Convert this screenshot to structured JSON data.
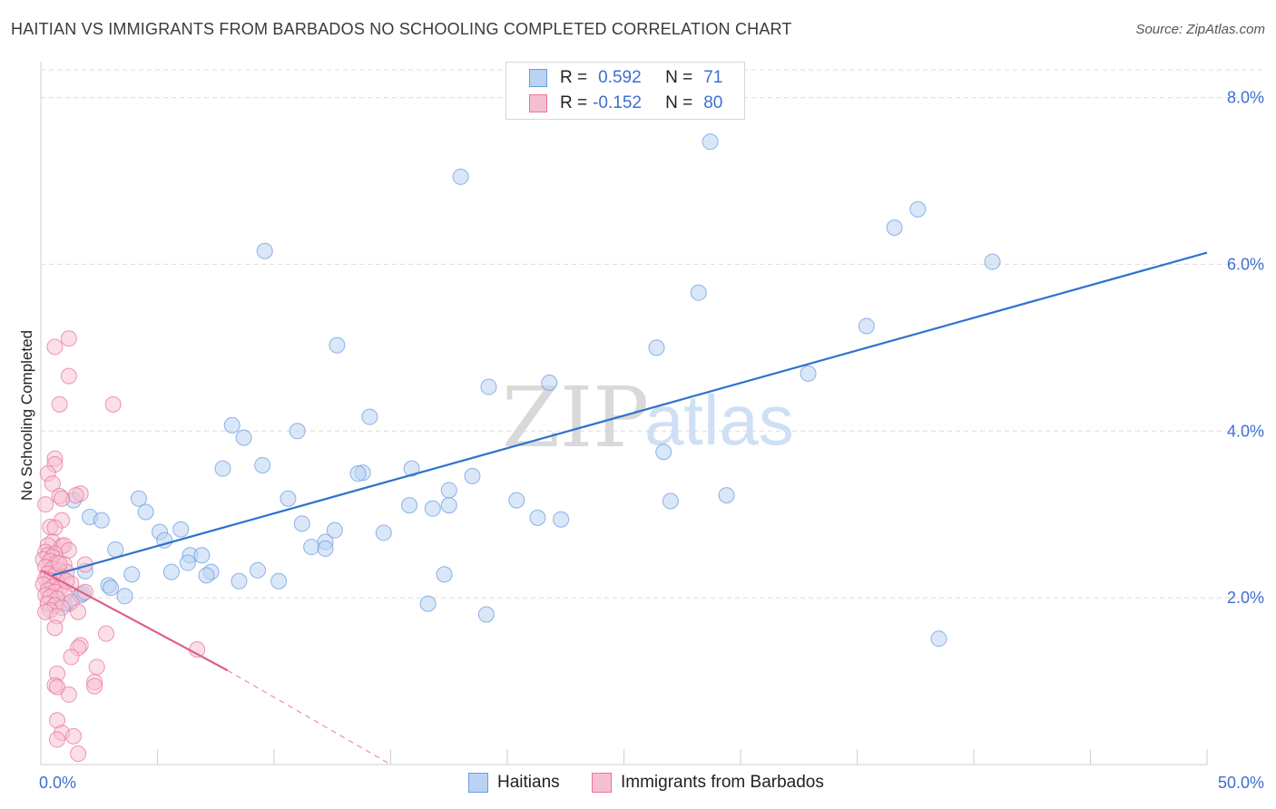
{
  "title": "HAITIAN VS IMMIGRANTS FROM BARBADOS NO SCHOOLING COMPLETED CORRELATION CHART",
  "source": "Source: ZipAtlas.com",
  "watermark": {
    "zip": "ZIP",
    "atlas": "atlas"
  },
  "legend": {
    "rows": [
      {
        "r_label": "R =",
        "r_value": "0.592",
        "n_label": "N =",
        "n_value": "71"
      },
      {
        "r_label": "R =",
        "r_value": "-0.152",
        "n_label": "N =",
        "n_value": "80"
      }
    ]
  },
  "colors": {
    "haitians": "#6d9be0",
    "haitians_fill": "#bad3f3",
    "barbados": "#e8769b",
    "barbados_fill": "#f6bfd0",
    "trend_blue": "#2f72cc",
    "trend_pink": "#e0608c",
    "tick_text": "#3d6fd0"
  },
  "chart_data": {
    "type": "scatter",
    "title": "HAITIAN VS IMMIGRANTS FROM BARBADOS NO SCHOOLING COMPLETED CORRELATION CHART",
    "xlabel": "",
    "ylabel": "No Schooling Completed",
    "xlim": [
      0,
      50
    ],
    "ylim": [
      0,
      8.3
    ],
    "x_tick_labels": [
      "0.0%",
      "50.0%"
    ],
    "y_ticks": [
      2,
      4,
      6,
      8
    ],
    "y_tick_labels": [
      "2.0%",
      "4.0%",
      "6.0%",
      "8.0%"
    ],
    "grid": true,
    "legend_position": "bottom",
    "series": [
      {
        "name": "Haitians",
        "r": 0.592,
        "n": 71,
        "trend": {
          "x0": 0.5,
          "y0": 2.27,
          "x1": 50.0,
          "y1": 6.14
        },
        "points": [
          [
            28.7,
            7.47
          ],
          [
            18.0,
            7.05
          ],
          [
            37.6,
            6.66
          ],
          [
            36.6,
            6.44
          ],
          [
            9.6,
            6.16
          ],
          [
            40.8,
            6.03
          ],
          [
            28.2,
            5.66
          ],
          [
            35.4,
            5.26
          ],
          [
            12.7,
            5.03
          ],
          [
            26.4,
            5.0
          ],
          [
            32.9,
            4.69
          ],
          [
            21.8,
            4.58
          ],
          [
            19.2,
            4.53
          ],
          [
            14.1,
            4.17
          ],
          [
            8.2,
            4.07
          ],
          [
            11.0,
            4.0
          ],
          [
            8.7,
            3.92
          ],
          [
            26.7,
            3.75
          ],
          [
            9.5,
            3.59
          ],
          [
            15.9,
            3.55
          ],
          [
            7.8,
            3.55
          ],
          [
            13.8,
            3.5
          ],
          [
            18.5,
            3.46
          ],
          [
            13.6,
            3.49
          ],
          [
            17.5,
            3.29
          ],
          [
            29.4,
            3.23
          ],
          [
            10.6,
            3.19
          ],
          [
            4.2,
            3.19
          ],
          [
            1.4,
            3.17
          ],
          [
            20.4,
            3.17
          ],
          [
            27.0,
            3.16
          ],
          [
            17.5,
            3.11
          ],
          [
            15.8,
            3.11
          ],
          [
            16.8,
            3.07
          ],
          [
            4.5,
            3.03
          ],
          [
            2.1,
            2.97
          ],
          [
            2.6,
            2.93
          ],
          [
            21.3,
            2.96
          ],
          [
            22.3,
            2.94
          ],
          [
            11.2,
            2.89
          ],
          [
            6.0,
            2.82
          ],
          [
            5.1,
            2.79
          ],
          [
            12.6,
            2.81
          ],
          [
            14.7,
            2.78
          ],
          [
            5.3,
            2.69
          ],
          [
            12.2,
            2.67
          ],
          [
            11.6,
            2.61
          ],
          [
            12.2,
            2.59
          ],
          [
            3.2,
            2.58
          ],
          [
            6.4,
            2.51
          ],
          [
            6.9,
            2.51
          ],
          [
            6.3,
            2.42
          ],
          [
            1.9,
            2.32
          ],
          [
            9.3,
            2.33
          ],
          [
            5.6,
            2.31
          ],
          [
            7.3,
            2.31
          ],
          [
            3.9,
            2.28
          ],
          [
            7.1,
            2.27
          ],
          [
            17.3,
            2.28
          ],
          [
            8.5,
            2.2
          ],
          [
            10.2,
            2.2
          ],
          [
            2.9,
            2.15
          ],
          [
            1.7,
            2.03
          ],
          [
            3.6,
            2.02
          ],
          [
            1.0,
            1.93
          ],
          [
            16.6,
            1.93
          ],
          [
            19.1,
            1.8
          ],
          [
            38.5,
            1.51
          ],
          [
            1.2,
            1.93
          ],
          [
            1.8,
            2.05
          ],
          [
            3.0,
            2.12
          ]
        ]
      },
      {
        "name": "Immigrants from Barbados",
        "r": -0.152,
        "n": 80,
        "trend": {
          "x0": 0.0,
          "y0": 2.33,
          "x1": 8.0,
          "y1": 1.13
        },
        "trend_extension": {
          "x0": 8.0,
          "y0": 1.13,
          "x1": 15.0,
          "y1": 0.0
        },
        "points": [
          [
            1.2,
            5.11
          ],
          [
            0.6,
            5.01
          ],
          [
            1.2,
            4.66
          ],
          [
            0.8,
            4.32
          ],
          [
            3.1,
            4.32
          ],
          [
            0.6,
            3.67
          ],
          [
            0.6,
            3.6
          ],
          [
            0.3,
            3.49
          ],
          [
            0.5,
            3.37
          ],
          [
            1.7,
            3.25
          ],
          [
            1.5,
            3.23
          ],
          [
            0.8,
            3.22
          ],
          [
            0.9,
            3.19
          ],
          [
            0.2,
            3.12
          ],
          [
            0.9,
            2.93
          ],
          [
            0.4,
            2.85
          ],
          [
            0.6,
            2.84
          ],
          [
            0.5,
            2.67
          ],
          [
            0.3,
            2.63
          ],
          [
            0.9,
            2.62
          ],
          [
            1.0,
            2.63
          ],
          [
            1.2,
            2.57
          ],
          [
            0.2,
            2.55
          ],
          [
            0.6,
            2.53
          ],
          [
            0.3,
            2.51
          ],
          [
            0.5,
            2.49
          ],
          [
            0.1,
            2.46
          ],
          [
            0.4,
            2.44
          ],
          [
            0.7,
            2.42
          ],
          [
            1.0,
            2.4
          ],
          [
            1.9,
            2.4
          ],
          [
            0.2,
            2.37
          ],
          [
            0.5,
            2.35
          ],
          [
            0.8,
            2.33
          ],
          [
            1.1,
            2.31
          ],
          [
            0.3,
            2.29
          ],
          [
            0.6,
            2.27
          ],
          [
            0.9,
            2.25
          ],
          [
            0.2,
            2.23
          ],
          [
            0.4,
            2.21
          ],
          [
            0.7,
            2.19
          ],
          [
            1.3,
            2.17
          ],
          [
            0.1,
            2.16
          ],
          [
            0.5,
            2.13
          ],
          [
            0.8,
            2.11
          ],
          [
            0.3,
            2.09
          ],
          [
            0.6,
            2.07
          ],
          [
            1.0,
            2.05
          ],
          [
            1.9,
            2.07
          ],
          [
            0.2,
            2.03
          ],
          [
            0.4,
            2.01
          ],
          [
            0.7,
            1.99
          ],
          [
            1.3,
            1.95
          ],
          [
            0.3,
            1.93
          ],
          [
            0.6,
            1.91
          ],
          [
            0.9,
            1.88
          ],
          [
            0.4,
            1.85
          ],
          [
            0.2,
            1.83
          ],
          [
            1.6,
            1.83
          ],
          [
            0.7,
            1.78
          ],
          [
            0.6,
            1.64
          ],
          [
            2.8,
            1.57
          ],
          [
            1.7,
            1.43
          ],
          [
            1.6,
            1.4
          ],
          [
            6.7,
            1.38
          ],
          [
            1.3,
            1.29
          ],
          [
            2.4,
            1.17
          ],
          [
            0.7,
            1.09
          ],
          [
            2.3,
            0.99
          ],
          [
            0.6,
            0.95
          ],
          [
            0.7,
            0.93
          ],
          [
            2.3,
            0.94
          ],
          [
            1.2,
            0.84
          ],
          [
            0.7,
            0.53
          ],
          [
            0.9,
            0.38
          ],
          [
            1.4,
            0.34
          ],
          [
            0.7,
            0.3
          ],
          [
            1.6,
            0.13
          ],
          [
            0.8,
            2.41
          ],
          [
            1.1,
            2.2
          ]
        ]
      }
    ]
  },
  "bottom_legend": {
    "items": [
      {
        "label": "Haitians"
      },
      {
        "label": "Immigrants from Barbados"
      }
    ]
  }
}
